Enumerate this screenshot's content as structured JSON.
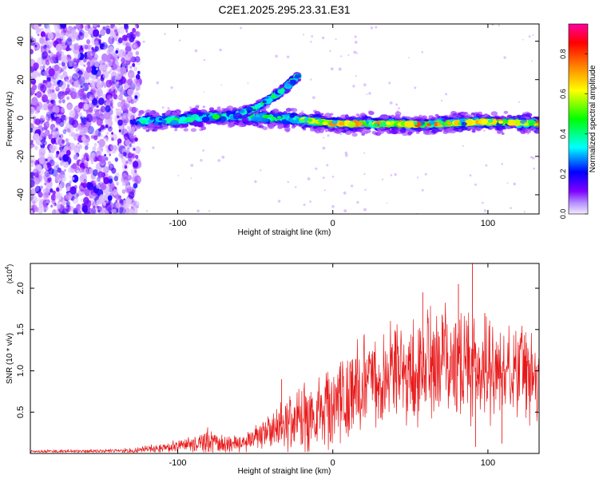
{
  "chart_data": [
    {
      "type": "heatmap",
      "title": "C2E1.2025.295.23.31.E31",
      "xlabel": "Height of straight line (km)",
      "ylabel": "Frequency (Hz)",
      "xlim": [
        -195,
        133
      ],
      "ylim": [
        -50,
        49
      ],
      "xticks": [
        -100,
        0,
        100
      ],
      "yticks": [
        -40,
        -20,
        0,
        20,
        40
      ],
      "xtick_labels": [
        "-100",
        "0",
        "100"
      ],
      "ytick_labels": [
        "-40",
        "-20",
        "0",
        "20",
        "40"
      ],
      "colorbar": {
        "label": "Normalized spectral amplitude",
        "range": [
          0,
          0.95
        ],
        "ticks": [
          0.0,
          0.2,
          0.4,
          0.6,
          0.8
        ],
        "tick_labels": [
          "0.0",
          "0.2",
          "0.4",
          "0.6",
          "0.8"
        ],
        "palette": [
          "#f0e8ff",
          "#7f00ff",
          "#0000ff",
          "#00ffff",
          "#00ff00",
          "#ffff00",
          "#ff8000",
          "#ff0000",
          "#ff00a0"
        ]
      },
      "features": {
        "noise_region_x": [
          -195,
          -125
        ],
        "main_band": [
          {
            "x": -125,
            "y": -2
          },
          {
            "x": -100,
            "y": -1
          },
          {
            "x": -80,
            "y": 0.5
          },
          {
            "x": -60,
            "y": 1
          },
          {
            "x": -40,
            "y": 0
          },
          {
            "x": -20,
            "y": -1
          },
          {
            "x": 0,
            "y": -3
          },
          {
            "x": 20,
            "y": -3
          },
          {
            "x": 40,
            "y": -3
          },
          {
            "x": 60,
            "y": -3.5
          },
          {
            "x": 80,
            "y": -2.5
          },
          {
            "x": 100,
            "y": -2
          },
          {
            "x": 133,
            "y": -3
          }
        ],
        "rising_branch": [
          {
            "x": -62,
            "y": 2
          },
          {
            "x": -50,
            "y": 5
          },
          {
            "x": -40,
            "y": 10
          },
          {
            "x": -30,
            "y": 16
          },
          {
            "x": -22,
            "y": 22
          }
        ]
      }
    },
    {
      "type": "line",
      "title": "",
      "xlabel": "Height of straight line (km)",
      "ylabel": "SNR (10 * v/v)",
      "scale_label": "(x10",
      "scale_exp": "4",
      "scale_close": ")",
      "color": "#e8191a",
      "xlim": [
        -195,
        133
      ],
      "ylim": [
        0,
        2.3
      ],
      "xticks": [
        -100,
        0,
        100
      ],
      "yticks": [
        0.5,
        1.0,
        1.5,
        2.0
      ],
      "xtick_labels": [
        "-100",
        "0",
        "100"
      ],
      "ytick_labels": [
        "0.5",
        "1.0",
        "1.5",
        "2.0"
      ],
      "envelope": [
        {
          "x": -195,
          "base": 0.02,
          "amp": 0.02
        },
        {
          "x": -130,
          "base": 0.03,
          "amp": 0.03
        },
        {
          "x": -115,
          "base": 0.06,
          "amp": 0.05
        },
        {
          "x": -95,
          "base": 0.1,
          "amp": 0.08
        },
        {
          "x": -80,
          "base": 0.14,
          "amp": 0.18
        },
        {
          "x": -70,
          "base": 0.1,
          "amp": 0.1
        },
        {
          "x": -55,
          "base": 0.15,
          "amp": 0.12
        },
        {
          "x": -40,
          "base": 0.3,
          "amp": 0.25
        },
        {
          "x": -30,
          "base": 0.38,
          "amp": 0.35
        },
        {
          "x": -15,
          "base": 0.4,
          "amp": 0.4
        },
        {
          "x": 0,
          "base": 0.62,
          "amp": 0.5
        },
        {
          "x": 20,
          "base": 0.85,
          "amp": 0.6
        },
        {
          "x": 40,
          "base": 1.0,
          "amp": 0.65
        },
        {
          "x": 60,
          "base": 1.05,
          "amp": 0.7
        },
        {
          "x": 80,
          "base": 1.1,
          "amp": 0.65
        },
        {
          "x": 100,
          "base": 1.0,
          "amp": 0.6
        },
        {
          "x": 120,
          "base": 0.95,
          "amp": 0.55
        },
        {
          "x": 133,
          "base": 0.95,
          "amp": 0.5
        }
      ],
      "spikes": [
        {
          "x": -33,
          "y": 0.9
        },
        {
          "x": 58,
          "y": 1.95
        },
        {
          "x": 81,
          "y": 2.05
        },
        {
          "x": 90,
          "y": 2.3
        },
        {
          "x": 92,
          "y": 0.08
        },
        {
          "x": 98,
          "y": 1.7
        },
        {
          "x": 109,
          "y": 0.12
        }
      ]
    }
  ]
}
